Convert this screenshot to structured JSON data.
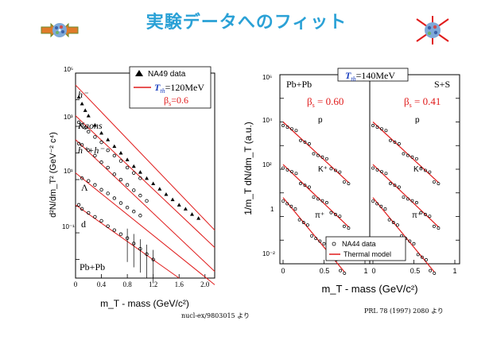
{
  "slide": {
    "title": "実験データへのフィット",
    "citation_left": "nucl-ex/9803015 より",
    "citation_right": "PRL 78 (1997) 2080 より"
  },
  "colors": {
    "title": "#2aa1d6",
    "fit_line": "#e01b1b",
    "beta": "#e01b1b"
  },
  "icons": [
    "fireball-with-arrows-icon",
    "exploding-fireball-icon"
  ],
  "chart_data": [
    {
      "type": "scatter",
      "xlabel": "m_T - mass (GeV/c²)",
      "ylabel": "d²N/dm_T² (GeV⁻² c⁴)",
      "xticks": [
        "0",
        "0.4",
        "0.8",
        "1.2",
        "1.6",
        "2.0"
      ],
      "yticks": [
        "10⁵",
        "10³",
        "10¹",
        "10⁻¹"
      ],
      "xlim": [
        0,
        2.15
      ],
      "log_y": true,
      "ylim_log10": [
        -2.7,
        5.0
      ],
      "legend": {
        "marker_label": "NA49 data",
        "line_label_var": "T",
        "line_label_sub": "th",
        "line_label_val": "=120MeV",
        "beta_var": "β",
        "beta_sub": "s",
        "beta_val": "=0.6"
      },
      "system_label": "Pb+Pb",
      "series": [
        {
          "label": "h⁻",
          "log10_points": [
            [
              0.05,
              4.1
            ],
            [
              0.1,
              3.85
            ],
            [
              0.15,
              3.6
            ],
            [
              0.2,
              3.4
            ],
            [
              0.3,
              3.05
            ],
            [
              0.4,
              2.75
            ],
            [
              0.5,
              2.5
            ],
            [
              0.6,
              2.25
            ],
            [
              0.7,
              2.0
            ],
            [
              0.8,
              1.75
            ],
            [
              0.9,
              1.5
            ],
            [
              1.0,
              1.28
            ],
            [
              1.1,
              1.05
            ],
            [
              1.2,
              0.85
            ],
            [
              1.3,
              0.65
            ],
            [
              1.4,
              0.45
            ],
            [
              1.5,
              0.25
            ],
            [
              1.6,
              0.05
            ],
            [
              1.7,
              -0.1
            ],
            [
              1.8,
              -0.3
            ],
            [
              1.9,
              -0.45
            ]
          ],
          "fit_log10": [
            [
              0.0,
              4.55
            ],
            [
              2.15,
              -0.9
            ]
          ]
        },
        {
          "label": "Kaons",
          "log10_points": [
            [
              0.05,
              3.15
            ],
            [
              0.1,
              3.05
            ],
            [
              0.15,
              2.95
            ],
            [
              0.2,
              2.8
            ],
            [
              0.3,
              2.6
            ],
            [
              0.4,
              2.4
            ],
            [
              0.5,
              2.1
            ],
            [
              0.6,
              1.9
            ],
            [
              0.7,
              1.7
            ],
            [
              0.8,
              1.45
            ],
            [
              0.9,
              1.25
            ],
            [
              1.0,
              1.05
            ]
          ],
          "fit_log10": [
            [
              0.0,
              3.4
            ],
            [
              2.15,
              -1.55
            ]
          ]
        },
        {
          "label": "h⁺+h⁻",
          "log10_points": [
            [
              0.05,
              2.35
            ],
            [
              0.1,
              2.3
            ],
            [
              0.2,
              2.1
            ],
            [
              0.3,
              1.9
            ],
            [
              0.4,
              1.65
            ],
            [
              0.5,
              1.45
            ],
            [
              0.6,
              1.2
            ],
            [
              0.7,
              1.0
            ],
            [
              0.8,
              0.8
            ],
            [
              0.9,
              0.6
            ],
            [
              1.0,
              0.4
            ],
            [
              1.1,
              0.2
            ]
          ],
          "fit_log10": [
            [
              0.0,
              2.5
            ],
            [
              2.15,
              -2.45
            ]
          ]
        },
        {
          "label": "Λ",
          "log10_points": [
            [
              0.1,
              1.05
            ],
            [
              0.2,
              0.95
            ],
            [
              0.3,
              0.8
            ],
            [
              0.4,
              0.62
            ],
            [
              0.5,
              0.48
            ],
            [
              0.6,
              0.3
            ],
            [
              0.7,
              0.12
            ],
            [
              0.8,
              -0.05
            ],
            [
              0.9,
              -0.2
            ],
            [
              1.0,
              -0.35
            ]
          ],
          "fit_log10": [
            [
              0.0,
              1.25
            ],
            [
              2.15,
              -2.95
            ]
          ]
        },
        {
          "label": "d",
          "log10_points": [
            [
              0.05,
              0.05
            ],
            [
              0.1,
              -0.1
            ],
            [
              0.2,
              -0.25
            ],
            [
              0.3,
              -0.4
            ],
            [
              0.4,
              -0.55
            ],
            [
              0.5,
              -0.75
            ],
            [
              0.6,
              -0.9
            ],
            [
              0.7,
              -1.05
            ],
            [
              0.8,
              -1.2
            ],
            [
              0.9,
              -1.4
            ],
            [
              1.0,
              -1.6
            ],
            [
              1.1,
              -1.8
            ],
            [
              1.2,
              -2.0
            ]
          ],
          "fit_log10": [
            [
              0.0,
              0.05
            ],
            [
              1.6,
              -2.7
            ]
          ]
        }
      ]
    },
    {
      "type": "scatter",
      "xlabel": "m_T - mass (GeV/c²)",
      "ylabel": "1/m_T dN/dm_T (a.u.)",
      "xticks": [
        "0",
        "0.5",
        "1"
      ],
      "yticks": [
        "10⁶",
        "10⁴",
        "10²",
        "1",
        "10⁻²"
      ],
      "log_y": true,
      "header": {
        "var": "T",
        "sub": "th",
        "val": "=140MeV"
      },
      "legend": {
        "marker_label": "NA44 data",
        "line_label": "Thermal model"
      },
      "panels": [
        {
          "system": "Pb+Pb",
          "beta_var": "β",
          "beta_sub": "s",
          "beta_val": " = 0.60",
          "particles": [
            "p",
            "K⁺",
            "π⁺"
          ]
        },
        {
          "system": "S+S",
          "beta_var": "β",
          "beta_sub": "s",
          "beta_val": " = 0.41",
          "particles": [
            "p",
            "K⁺",
            "π⁺"
          ]
        }
      ]
    }
  ]
}
